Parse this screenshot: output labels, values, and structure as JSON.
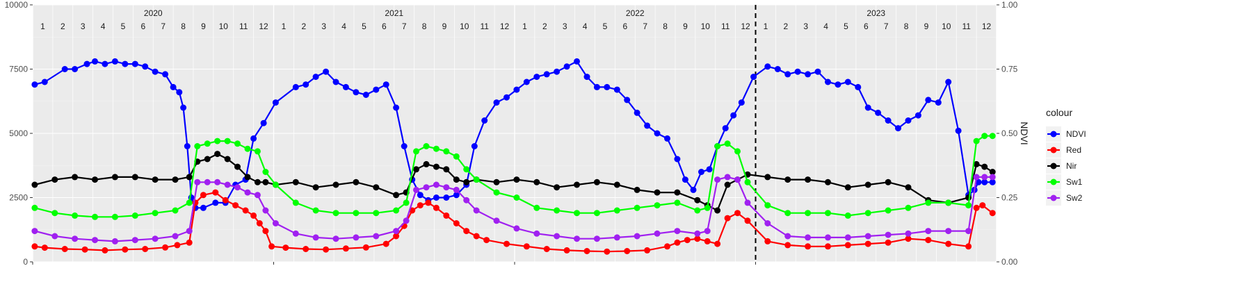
{
  "chart_data": {
    "type": "line",
    "title": "",
    "xlabel": "",
    "ylabel": "",
    "y2label": "NDVI",
    "ylim": [
      0,
      10000
    ],
    "y2lim": [
      0,
      1
    ],
    "y_ticks": [
      "0",
      "2500",
      "5000",
      "7500",
      "10000"
    ],
    "y2_ticks": [
      "0.00",
      "0.25",
      "0.50",
      "0.75",
      "1.00"
    ],
    "years": [
      "2020",
      "2021",
      "2022",
      "2023"
    ],
    "months": [
      "1",
      "2",
      "3",
      "4",
      "5",
      "6",
      "7",
      "8",
      "9",
      "10",
      "11",
      "12"
    ],
    "x_unit": "month index from Jan 2020",
    "xlim": [
      0,
      48
    ],
    "dashed_vline_x": 36,
    "grid": true,
    "legend_title": "colour",
    "legend_position": "right",
    "series": [
      {
        "name": "NDVI",
        "color": "#0000ff",
        "axis": "right",
        "x": [
          0.1,
          0.6,
          1.6,
          2.1,
          2.7,
          3.1,
          3.6,
          4.1,
          4.6,
          5.1,
          5.6,
          6.1,
          6.6,
          7.0,
          7.3,
          7.5,
          7.7,
          7.9,
          8.1,
          8.5,
          9.1,
          9.6,
          10.1,
          10.6,
          11.0,
          11.5,
          12.1,
          13.1,
          13.6,
          14.1,
          14.6,
          15.1,
          15.6,
          16.1,
          16.6,
          17.1,
          17.6,
          18.1,
          18.5,
          18.9,
          19.3,
          19.7,
          20.1,
          20.6,
          21.1,
          21.6,
          22.0,
          22.5,
          23.1,
          23.6,
          24.1,
          24.6,
          25.1,
          25.6,
          26.1,
          26.6,
          27.1,
          27.6,
          28.1,
          28.6,
          29.1,
          29.6,
          30.1,
          30.6,
          31.1,
          31.6,
          32.1,
          32.5,
          32.9,
          33.3,
          33.7,
          34.1,
          34.5,
          34.9,
          35.3,
          35.9,
          36.6,
          37.1,
          37.6,
          38.1,
          38.6,
          39.1,
          39.6,
          40.1,
          40.6,
          41.1,
          41.6,
          42.1,
          42.6,
          43.1,
          43.6,
          44.1,
          44.6,
          45.1,
          45.6,
          46.1,
          46.6,
          46.9,
          47.1,
          47.4,
          47.8
        ],
        "y": [
          0.69,
          0.7,
          0.75,
          0.75,
          0.77,
          0.78,
          0.77,
          0.78,
          0.77,
          0.77,
          0.76,
          0.74,
          0.73,
          0.68,
          0.66,
          0.6,
          0.45,
          0.25,
          0.21,
          0.21,
          0.23,
          0.23,
          0.3,
          0.32,
          0.48,
          0.54,
          0.62,
          0.68,
          0.69,
          0.72,
          0.74,
          0.7,
          0.68,
          0.66,
          0.65,
          0.67,
          0.69,
          0.6,
          0.45,
          0.32,
          0.26,
          0.24,
          0.25,
          0.25,
          0.26,
          0.3,
          0.45,
          0.55,
          0.62,
          0.64,
          0.67,
          0.7,
          0.72,
          0.73,
          0.74,
          0.76,
          0.78,
          0.72,
          0.68,
          0.68,
          0.67,
          0.63,
          0.58,
          0.53,
          0.5,
          0.48,
          0.4,
          0.32,
          0.28,
          0.35,
          0.36,
          0.45,
          0.52,
          0.57,
          0.62,
          0.72,
          0.76,
          0.75,
          0.73,
          0.74,
          0.73,
          0.74,
          0.7,
          0.69,
          0.7,
          0.68,
          0.6,
          0.58,
          0.55,
          0.52,
          0.55,
          0.57,
          0.63,
          0.62,
          0.7,
          0.51,
          0.26,
          0.28,
          0.31,
          0.31,
          0.31
        ]
      },
      {
        "name": "Red",
        "color": "#ff0000",
        "axis": "left",
        "x": [
          0.1,
          0.6,
          1.6,
          2.6,
          3.6,
          4.6,
          5.6,
          6.6,
          7.2,
          7.8,
          8.1,
          8.5,
          9.1,
          9.6,
          10.1,
          10.6,
          11.0,
          11.3,
          11.6,
          11.9,
          12.6,
          13.6,
          14.6,
          15.6,
          16.6,
          17.6,
          18.1,
          18.5,
          18.9,
          19.3,
          19.7,
          20.1,
          20.6,
          21.1,
          21.6,
          22.1,
          22.6,
          23.6,
          24.6,
          25.6,
          26.6,
          27.6,
          28.6,
          29.6,
          30.6,
          31.6,
          32.1,
          32.6,
          33.1,
          33.6,
          34.1,
          34.6,
          35.1,
          35.6,
          36.6,
          37.6,
          38.6,
          39.6,
          40.6,
          41.6,
          42.6,
          43.6,
          44.6,
          45.6,
          46.6,
          47.0,
          47.3,
          47.8
        ],
        "y": [
          600,
          550,
          500,
          480,
          450,
          480,
          500,
          560,
          650,
          750,
          2300,
          2600,
          2700,
          2400,
          2200,
          2000,
          1800,
          1500,
          1200,
          600,
          550,
          500,
          480,
          520,
          560,
          700,
          1000,
          1400,
          2000,
          2200,
          2300,
          2100,
          1800,
          1500,
          1200,
          1000,
          850,
          700,
          600,
          500,
          450,
          420,
          400,
          420,
          450,
          600,
          750,
          850,
          900,
          800,
          700,
          1700,
          1900,
          1600,
          800,
          650,
          600,
          600,
          650,
          700,
          750,
          900,
          850,
          700,
          600,
          2100,
          2200,
          1900
        ]
      },
      {
        "name": "Nir",
        "color": "#000000",
        "axis": "left",
        "x": [
          0.1,
          1.1,
          2.1,
          3.1,
          4.1,
          5.1,
          6.1,
          7.1,
          7.8,
          8.2,
          8.7,
          9.2,
          9.7,
          10.2,
          10.7,
          11.2,
          11.6,
          12.1,
          13.1,
          14.1,
          15.1,
          16.1,
          17.1,
          18.1,
          18.6,
          19.1,
          19.6,
          20.1,
          20.6,
          21.1,
          21.6,
          22.1,
          23.1,
          24.1,
          25.1,
          26.1,
          27.1,
          28.1,
          29.1,
          30.1,
          31.1,
          32.1,
          33.1,
          33.6,
          34.1,
          34.6,
          35.1,
          35.6,
          36.6,
          37.6,
          38.6,
          39.6,
          40.6,
          41.6,
          42.6,
          43.6,
          44.6,
          45.6,
          46.6,
          47.0,
          47.4,
          47.8
        ],
        "y": [
          3000,
          3200,
          3300,
          3200,
          3300,
          3300,
          3200,
          3200,
          3300,
          3900,
          4000,
          4200,
          4000,
          3700,
          3300,
          3100,
          3100,
          3000,
          3100,
          2900,
          3000,
          3100,
          2900,
          2600,
          2700,
          3600,
          3800,
          3700,
          3600,
          3200,
          3100,
          3200,
          3100,
          3200,
          3100,
          2900,
          3000,
          3100,
          3000,
          2800,
          2700,
          2700,
          2400,
          2200,
          2000,
          3000,
          3200,
          3400,
          3300,
          3200,
          3200,
          3100,
          2900,
          3000,
          3100,
          2900,
          2400,
          2300,
          2500,
          3800,
          3700,
          3500
        ]
      },
      {
        "name": "Sw1",
        "color": "#00ff00",
        "axis": "left",
        "x": [
          0.1,
          1.1,
          2.1,
          3.1,
          4.1,
          5.1,
          6.1,
          7.1,
          7.8,
          8.2,
          8.7,
          9.2,
          9.7,
          10.2,
          10.7,
          11.2,
          11.6,
          12.1,
          13.1,
          14.1,
          15.1,
          16.1,
          17.1,
          18.1,
          18.6,
          19.1,
          19.6,
          20.1,
          20.6,
          21.1,
          21.6,
          22.1,
          23.1,
          24.1,
          25.1,
          26.1,
          27.1,
          28.1,
          29.1,
          30.1,
          31.1,
          32.1,
          33.1,
          33.6,
          34.1,
          34.6,
          35.1,
          35.6,
          36.6,
          37.6,
          38.6,
          39.6,
          40.6,
          41.6,
          42.6,
          43.6,
          44.6,
          45.6,
          46.6,
          47.0,
          47.4,
          47.8
        ],
        "y": [
          2100,
          1900,
          1800,
          1750,
          1750,
          1800,
          1900,
          2000,
          2300,
          4500,
          4600,
          4700,
          4700,
          4600,
          4400,
          4300,
          3500,
          3000,
          2300,
          2000,
          1900,
          1900,
          1900,
          2000,
          2300,
          4300,
          4500,
          4400,
          4300,
          4100,
          3600,
          3200,
          2700,
          2500,
          2100,
          2000,
          1900,
          1900,
          2000,
          2100,
          2200,
          2300,
          2000,
          2100,
          4500,
          4600,
          4300,
          3100,
          2200,
          1900,
          1900,
          1900,
          1800,
          1900,
          2000,
          2100,
          2300,
          2300,
          2200,
          4700,
          4900,
          4900
        ]
      },
      {
        "name": "Sw2",
        "color": "#a020f0",
        "axis": "left",
        "x": [
          0.1,
          1.1,
          2.1,
          3.1,
          4.1,
          5.1,
          6.1,
          7.1,
          7.8,
          8.2,
          8.7,
          9.2,
          9.7,
          10.2,
          10.7,
          11.2,
          11.6,
          12.1,
          13.1,
          14.1,
          15.1,
          16.1,
          17.1,
          18.1,
          18.6,
          19.1,
          19.6,
          20.1,
          20.6,
          21.1,
          21.6,
          22.1,
          23.1,
          24.1,
          25.1,
          26.1,
          27.1,
          28.1,
          29.1,
          30.1,
          31.1,
          32.1,
          33.1,
          33.6,
          34.1,
          34.6,
          35.1,
          35.6,
          36.6,
          37.6,
          38.6,
          39.6,
          40.6,
          41.6,
          42.6,
          43.6,
          44.6,
          45.6,
          46.6,
          47.0,
          47.4,
          47.8
        ],
        "y": [
          1200,
          1000,
          900,
          850,
          800,
          850,
          900,
          1000,
          1200,
          3100,
          3100,
          3100,
          3000,
          2900,
          2700,
          2600,
          2000,
          1500,
          1100,
          950,
          900,
          950,
          1000,
          1200,
          1600,
          2800,
          2900,
          3000,
          2900,
          2800,
          2400,
          2000,
          1600,
          1300,
          1100,
          1000,
          900,
          900,
          950,
          1000,
          1100,
          1200,
          1100,
          1200,
          3200,
          3300,
          3200,
          2300,
          1500,
          1000,
          950,
          950,
          950,
          1000,
          1050,
          1100,
          1200,
          1200,
          1200,
          3300,
          3300,
          3300
        ]
      }
    ]
  }
}
